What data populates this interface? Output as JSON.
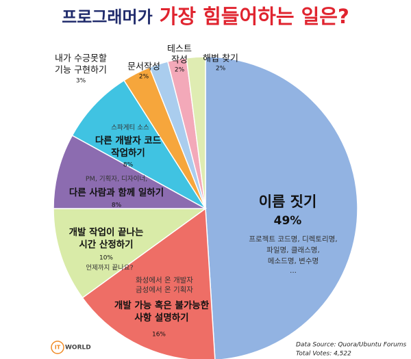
{
  "chart_data": {
    "type": "pie",
    "title": [
      "프로그래머가",
      "가장 힘들어하는 일은?"
    ],
    "categories": [
      [
        "이름 짓기"
      ],
      [
        "개발 가능 혹은 불가능한",
        "사항 설명하기"
      ],
      [
        "개발 작업이 끝나는",
        "시간 산정하기"
      ],
      [
        "다른 사람과 함께 일하기"
      ],
      [
        "다른 개발자 코드",
        "작업하기"
      ],
      [
        "내가 수긍못할",
        "기능 구현하기"
      ],
      [
        "문서작성"
      ],
      [
        "테스트",
        "작성"
      ],
      [
        "해법 찾기"
      ]
    ],
    "values": [
      49,
      16,
      10,
      8,
      8,
      3,
      2,
      2,
      2
    ],
    "value_labels": [
      "49%",
      "16%",
      "10%",
      "8%",
      "8%",
      "3%",
      "2%",
      "2%",
      "2%"
    ],
    "notes": [
      [
        "프로젝트 코드명, 디렉토리명,",
        "파일명, 클래스명,",
        "메소드명, 변수명",
        "..."
      ],
      [
        "화성에서 온 개발자",
        "금성에서 온 기획자"
      ],
      [
        "언제까지 끝나요?"
      ],
      [
        "PM, 기획자, 디자이너,"
      ],
      [
        "스파게티 소스"
      ],
      [],
      [],
      [],
      []
    ],
    "colors": [
      "#92b3e2",
      "#ee6e66",
      "#d9eba8",
      "#8c6cb0",
      "#40c3e2",
      "#f6a63c",
      "#aacdee",
      "#f3a9b9",
      "#dfecb2"
    ],
    "source": [
      "Data Source: Quora/Ubuntu Forums",
      "Total Votes: 4,522"
    ],
    "logo": [
      "IT",
      "WORLD"
    ]
  }
}
